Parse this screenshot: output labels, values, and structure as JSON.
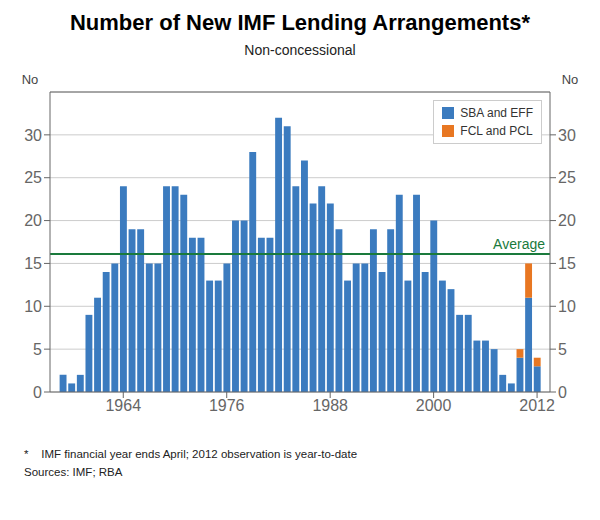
{
  "chart_data": {
    "type": "bar",
    "title": "Number of New IMF Lending Arrangements*",
    "subtitle": "Non-concessional",
    "ylabel": "No",
    "y2label": "No",
    "x": [
      1957,
      1958,
      1959,
      1960,
      1961,
      1962,
      1963,
      1964,
      1965,
      1966,
      1967,
      1968,
      1969,
      1970,
      1971,
      1972,
      1973,
      1974,
      1975,
      1976,
      1977,
      1978,
      1979,
      1980,
      1981,
      1982,
      1983,
      1984,
      1985,
      1986,
      1987,
      1988,
      1989,
      1990,
      1991,
      1992,
      1993,
      1994,
      1995,
      1996,
      1997,
      1998,
      1999,
      2000,
      2001,
      2002,
      2003,
      2004,
      2005,
      2006,
      2007,
      2008,
      2009,
      2010,
      2011,
      2012
    ],
    "xlim": [
      1955.5,
      2013.5
    ],
    "xticks": [
      1964,
      1976,
      1988,
      2000,
      2012
    ],
    "ylim": [
      0,
      35
    ],
    "yticks": [
      0,
      5,
      10,
      15,
      20,
      25,
      30
    ],
    "y2lim": [
      0,
      35
    ],
    "y2ticks": [
      0,
      5,
      10,
      15,
      20,
      25,
      30
    ],
    "stacked": true,
    "grid": true,
    "legend": "upper right",
    "series": [
      {
        "name": "SBA and EFF",
        "color": "#3b7bbf",
        "values": [
          2,
          1,
          2,
          9,
          11,
          14,
          15,
          24,
          19,
          19,
          15,
          15,
          24,
          24,
          23,
          18,
          18,
          13,
          13,
          15,
          20,
          20,
          28,
          18,
          18,
          32,
          31,
          24,
          27,
          22,
          24,
          22,
          19,
          13,
          15,
          15,
          19,
          14,
          19,
          23,
          13,
          23,
          14,
          20,
          13,
          12,
          9,
          9,
          6,
          6,
          5,
          2,
          1,
          4,
          11,
          3
        ]
      },
      {
        "name": "FCL and PCL",
        "color": "#e87722",
        "values": [
          0,
          0,
          0,
          0,
          0,
          0,
          0,
          0,
          0,
          0,
          0,
          0,
          0,
          0,
          0,
          0,
          0,
          0,
          0,
          0,
          0,
          0,
          0,
          0,
          0,
          0,
          0,
          0,
          0,
          0,
          0,
          0,
          0,
          0,
          0,
          0,
          0,
          0,
          0,
          0,
          0,
          0,
          0,
          0,
          0,
          0,
          0,
          0,
          0,
          0,
          0,
          0,
          0,
          1,
          4,
          1
        ]
      }
    ],
    "annotations": [
      {
        "label": "Average",
        "y": 16.1,
        "color": "#1a7a3c"
      }
    ],
    "notes": [
      "*    IMF financial year ends April; 2012 observation is year-to-date",
      "Sources: IMF; RBA"
    ]
  }
}
